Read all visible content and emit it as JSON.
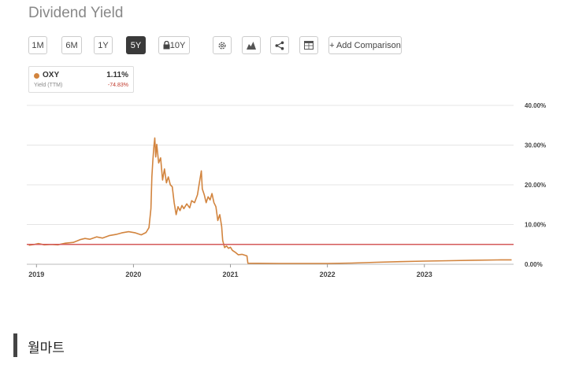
{
  "title": "Dividend Yield",
  "toolbar": {
    "ranges": [
      {
        "label": "1M",
        "active": false
      },
      {
        "label": "6M",
        "active": false
      },
      {
        "label": "1Y",
        "active": false
      },
      {
        "label": "5Y",
        "active": true
      },
      {
        "label": "10Y",
        "active": false,
        "icon": "lock-icon"
      }
    ],
    "tools": [
      "gear-icon",
      "mountain-chart-icon",
      "share-icon",
      "table-icon"
    ],
    "add_comparison": "+ Add Comparison"
  },
  "legend": {
    "ticker": "OXY",
    "value": "1.11%",
    "sublabel": "Yield (TTM)",
    "change": "-74.83%",
    "color": "#d2843e"
  },
  "chart_data": {
    "type": "line",
    "title": "Dividend Yield",
    "x_tick_labels": [
      "2019",
      "2020",
      "2021",
      "2022",
      "2023"
    ],
    "x_range": [
      2018.9,
      2023.92
    ],
    "y_tick_labels": [
      "0.00%",
      "10.00%",
      "20.00%",
      "30.00%",
      "40.00%"
    ],
    "y_ticks": [
      0,
      10,
      20,
      30,
      40
    ],
    "ylim": [
      0,
      40
    ],
    "grid": true,
    "series": [
      {
        "name": "OXY",
        "color": "#d2843e",
        "points": [
          [
            2018.92,
            4.8
          ],
          [
            2018.98,
            5.0
          ],
          [
            2019.02,
            5.2
          ],
          [
            2019.08,
            4.9
          ],
          [
            2019.15,
            5.0
          ],
          [
            2019.22,
            4.9
          ],
          [
            2019.3,
            5.3
          ],
          [
            2019.38,
            5.5
          ],
          [
            2019.45,
            6.2
          ],
          [
            2019.5,
            6.5
          ],
          [
            2019.55,
            6.3
          ],
          [
            2019.62,
            6.9
          ],
          [
            2019.68,
            6.6
          ],
          [
            2019.75,
            7.2
          ],
          [
            2019.82,
            7.5
          ],
          [
            2019.88,
            7.9
          ],
          [
            2019.95,
            8.2
          ],
          [
            2020.02,
            7.9
          ],
          [
            2020.08,
            7.4
          ],
          [
            2020.13,
            8.0
          ],
          [
            2020.16,
            9.2
          ],
          [
            2020.18,
            14.0
          ],
          [
            2020.19,
            22.0
          ],
          [
            2020.2,
            26.0
          ],
          [
            2020.21,
            29.5
          ],
          [
            2020.22,
            31.8
          ],
          [
            2020.23,
            27.0
          ],
          [
            2020.24,
            30.2
          ],
          [
            2020.26,
            25.5
          ],
          [
            2020.28,
            26.8
          ],
          [
            2020.3,
            21.2
          ],
          [
            2020.32,
            24.0
          ],
          [
            2020.34,
            20.5
          ],
          [
            2020.36,
            22.0
          ],
          [
            2020.38,
            20.0
          ],
          [
            2020.4,
            19.5
          ],
          [
            2020.42,
            15.5
          ],
          [
            2020.44,
            12.5
          ],
          [
            2020.46,
            14.5
          ],
          [
            2020.48,
            13.5
          ],
          [
            2020.5,
            14.8
          ],
          [
            2020.52,
            14.0
          ],
          [
            2020.55,
            15.2
          ],
          [
            2020.58,
            14.2
          ],
          [
            2020.6,
            16.0
          ],
          [
            2020.63,
            15.5
          ],
          [
            2020.66,
            17.5
          ],
          [
            2020.68,
            20.5
          ],
          [
            2020.7,
            23.5
          ],
          [
            2020.71,
            19.0
          ],
          [
            2020.73,
            17.5
          ],
          [
            2020.75,
            15.5
          ],
          [
            2020.77,
            17.0
          ],
          [
            2020.79,
            16.2
          ],
          [
            2020.81,
            17.8
          ],
          [
            2020.83,
            15.5
          ],
          [
            2020.85,
            14.5
          ],
          [
            2020.87,
            11.0
          ],
          [
            2020.89,
            12.5
          ],
          [
            2020.91,
            9.5
          ],
          [
            2020.92,
            6.0
          ],
          [
            2020.94,
            4.2
          ],
          [
            2020.96,
            4.6
          ],
          [
            2020.98,
            4.0
          ],
          [
            2021.0,
            4.3
          ],
          [
            2021.02,
            3.5
          ],
          [
            2021.05,
            3.0
          ],
          [
            2021.08,
            2.4
          ],
          [
            2021.12,
            2.5
          ],
          [
            2021.17,
            2.1
          ],
          [
            2021.18,
            0.25
          ],
          [
            2021.5,
            0.2
          ],
          [
            2022.0,
            0.2
          ],
          [
            2022.25,
            0.3
          ],
          [
            2022.5,
            0.5
          ],
          [
            2022.75,
            0.65
          ],
          [
            2023.0,
            0.8
          ],
          [
            2023.25,
            0.9
          ],
          [
            2023.5,
            1.0
          ],
          [
            2023.75,
            1.08
          ],
          [
            2023.9,
            1.11
          ]
        ]
      }
    ],
    "reference_line": {
      "value": 5.0,
      "color": "#d45a5a"
    },
    "axis_position": "right"
  },
  "footer": {
    "text": "월마트"
  }
}
